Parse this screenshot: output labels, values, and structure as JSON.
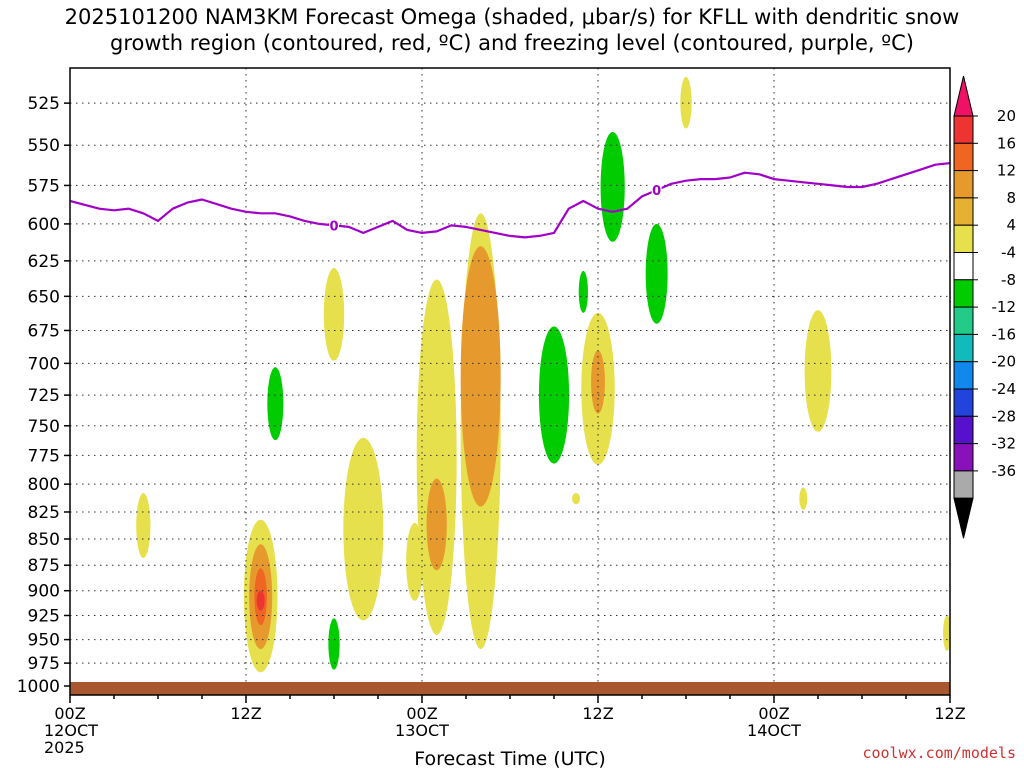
{
  "title": {
    "line1": "2025101200 NAM3KM Forecast Omega (shaded, μbar/s) for KFLL with dendritic snow",
    "line2": "growth region (contoured, red, ºC) and freezing level (contoured, purple, ºC)"
  },
  "credit": "coolwx.com/models",
  "chart_data": {
    "type": "heatmap",
    "title": "2025101200 NAM3KM Forecast Omega (shaded, μbar/s) for KFLL with dendritic snow growth region (contoured, red, ºC) and freezing level (contoured, purple, ºC)",
    "xlabel": "Forecast Time (UTC)",
    "ylabel": "",
    "x_unit": "forecast hour",
    "xlim": [
      0,
      60
    ],
    "ylim": [
      1010,
      505
    ],
    "y_ticks": [
      525,
      550,
      575,
      600,
      625,
      650,
      675,
      700,
      725,
      750,
      775,
      800,
      825,
      850,
      875,
      900,
      925,
      950,
      975,
      1000
    ],
    "x_ticks": [
      {
        "hour": 0,
        "line1": "00Z",
        "line2": "12OCT",
        "line3": "2025"
      },
      {
        "hour": 12,
        "line1": "12Z",
        "line2": "",
        "line3": ""
      },
      {
        "hour": 24,
        "line1": "00Z",
        "line2": "13OCT",
        "line3": ""
      },
      {
        "hour": 36,
        "line1": "12Z",
        "line2": "",
        "line3": ""
      },
      {
        "hour": 48,
        "line1": "00Z",
        "line2": "14OCT",
        "line3": ""
      },
      {
        "hour": 60,
        "line1": "12Z",
        "line2": "",
        "line3": ""
      }
    ],
    "grid": true,
    "colorbar": {
      "labels": [
        "20",
        "16",
        "12",
        "8",
        "4",
        "-4",
        "-8",
        "-12",
        "-16",
        "-20",
        "-24",
        "-28",
        "-32",
        "-36"
      ],
      "colors": [
        "#ee1166",
        "#ee3333",
        "#ee6622",
        "#e69a2e",
        "#e6b033",
        "#e6e04c",
        "#ffffff",
        "#00cc00",
        "#22cc88",
        "#11bbbb",
        "#1188ee",
        "#2244dd",
        "#5511cc",
        "#8811bb",
        "#aaaaaa",
        "#000000"
      ]
    },
    "freezing_level": {
      "label": "0",
      "color": "#a000c8",
      "hours": [
        0,
        2,
        3,
        4,
        5,
        6,
        7,
        8,
        9,
        10,
        11,
        12,
        13,
        14,
        15,
        16,
        17,
        18,
        19,
        20,
        21,
        22,
        23,
        24,
        25,
        26,
        27,
        28,
        29,
        30,
        31,
        32,
        33,
        34,
        35,
        36,
        37,
        38,
        39,
        40,
        41,
        42,
        43,
        44,
        45,
        46,
        47,
        48,
        49,
        50,
        51,
        52,
        53,
        54,
        55,
        56,
        57,
        58,
        59,
        60
      ],
      "pressure": [
        585,
        590,
        591,
        590,
        593,
        598,
        590,
        586,
        584,
        587,
        590,
        592,
        593,
        593,
        595,
        598,
        600,
        601,
        602,
        606,
        602,
        598,
        604,
        606,
        605,
        601,
        602,
        604,
        606,
        608,
        609,
        608,
        606,
        590,
        585,
        590,
        592,
        590,
        582,
        578,
        574,
        572,
        571,
        571,
        570,
        567,
        568,
        571,
        572,
        573,
        574,
        575,
        576,
        576,
        574,
        571,
        568,
        565,
        562,
        561
      ]
    },
    "series": [
      {
        "name": "omega 4 to 8",
        "color": "#e6e04c",
        "features": [
          {
            "hour": 5.0,
            "p_top": 808,
            "p_bottom": 868
          },
          {
            "hour": 13.0,
            "p_top": 832,
            "p_bottom": 985
          },
          {
            "hour": 18.0,
            "p_top": 630,
            "p_bottom": 698
          },
          {
            "hour": 20.0,
            "p_top": 760,
            "p_bottom": 930
          },
          {
            "hour": 23.5,
            "p_top": 835,
            "p_bottom": 910
          },
          {
            "hour": 25.0,
            "p_top": 638,
            "p_bottom": 945
          },
          {
            "hour": 28.0,
            "p_top": 593,
            "p_bottom": 960
          },
          {
            "hour": 34.5,
            "p_top": 808,
            "p_bottom": 818
          },
          {
            "hour": 36.0,
            "p_top": 662,
            "p_bottom": 783
          },
          {
            "hour": 42.0,
            "p_top": 510,
            "p_bottom": 540
          },
          {
            "hour": 50.0,
            "p_top": 803,
            "p_bottom": 823
          },
          {
            "hour": 51.0,
            "p_top": 660,
            "p_bottom": 755
          },
          {
            "hour": 59.8,
            "p_top": 925,
            "p_bottom": 962
          }
        ]
      },
      {
        "name": "omega 8 to 12",
        "color": "#e69a2e",
        "features": [
          {
            "hour": 13.0,
            "p_top": 855,
            "p_bottom": 960
          },
          {
            "hour": 25.0,
            "p_top": 795,
            "p_bottom": 880
          },
          {
            "hour": 28.0,
            "p_top": 615,
            "p_bottom": 820
          },
          {
            "hour": 36.0,
            "p_top": 690,
            "p_bottom": 740
          }
        ]
      },
      {
        "name": "omega 12 to 16",
        "color": "#ee6622",
        "features": [
          {
            "hour": 13.0,
            "p_top": 878,
            "p_bottom": 935
          }
        ]
      },
      {
        "name": "omega 16 to 20",
        "color": "#ee3333",
        "features": [
          {
            "hour": 13.0,
            "p_top": 900,
            "p_bottom": 920
          }
        ]
      },
      {
        "name": "omega -4 to -8",
        "color": "#00cc00",
        "features": [
          {
            "hour": 14.0,
            "p_top": 703,
            "p_bottom": 762
          },
          {
            "hour": 18.0,
            "p_top": 928,
            "p_bottom": 982
          },
          {
            "hour": 33.0,
            "p_top": 672,
            "p_bottom": 782
          },
          {
            "hour": 35.0,
            "p_top": 632,
            "p_bottom": 662
          },
          {
            "hour": 37.0,
            "p_top": 542,
            "p_bottom": 612
          },
          {
            "hour": 40.0,
            "p_top": 600,
            "p_bottom": 670
          }
        ]
      }
    ]
  }
}
